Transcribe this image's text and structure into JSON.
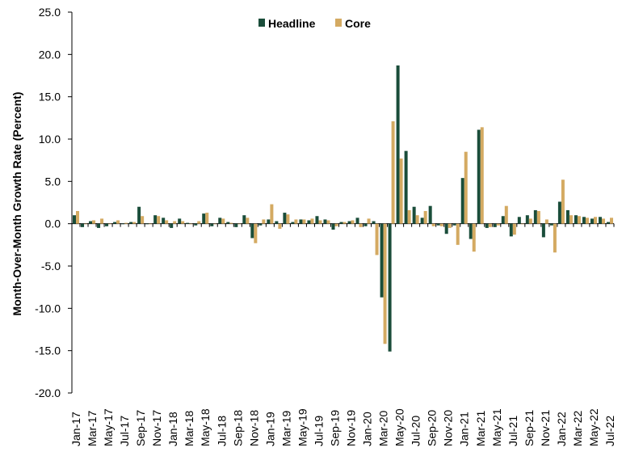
{
  "chart_data": {
    "type": "bar",
    "ylabel": "Month-Over-Month Growth Rate (Percent)",
    "ylim": [
      -20,
      25
    ],
    "yticks": [
      25,
      20,
      15,
      10,
      5,
      0,
      -5,
      -10,
      -15,
      -20
    ],
    "ytick_labels": [
      "25.0",
      "20.0",
      "15.0",
      "10.0",
      "5.0",
      "0.0",
      "-5.0",
      "-10.0",
      "-15.0",
      "-20.0"
    ],
    "legend_position": "top-center",
    "colors": {
      "Headline": "#1a4d3a",
      "Core": "#d4aa62"
    },
    "categories": [
      "Jan-17",
      "Feb-17",
      "Mar-17",
      "Apr-17",
      "May-17",
      "Jun-17",
      "Jul-17",
      "Aug-17",
      "Sep-17",
      "Oct-17",
      "Nov-17",
      "Dec-17",
      "Jan-18",
      "Feb-18",
      "Mar-18",
      "Apr-18",
      "May-18",
      "Jun-18",
      "Jul-18",
      "Aug-18",
      "Sep-18",
      "Oct-18",
      "Nov-18",
      "Dec-18",
      "Jan-19",
      "Feb-19",
      "Mar-19",
      "Apr-19",
      "May-19",
      "Jun-19",
      "Jul-19",
      "Aug-19",
      "Sep-19",
      "Oct-19",
      "Nov-19",
      "Dec-19",
      "Jan-20",
      "Feb-20",
      "Mar-20",
      "Apr-20",
      "May-20",
      "Jun-20",
      "Jul-20",
      "Aug-20",
      "Sep-20",
      "Oct-20",
      "Nov-20",
      "Dec-20",
      "Jan-21",
      "Feb-21",
      "Mar-21",
      "Apr-21",
      "May-21",
      "Jun-21",
      "Jul-21",
      "Aug-21",
      "Sep-21",
      "Oct-21",
      "Nov-21",
      "Dec-21",
      "Jan-22",
      "Feb-22",
      "Mar-22",
      "Apr-22",
      "May-22",
      "Jun-22",
      "Jul-22"
    ],
    "x_tick_labels": [
      "Jan-17",
      "Mar-17",
      "May-17",
      "Jul-17",
      "Sep-17",
      "Nov-17",
      "Jan-18",
      "Mar-18",
      "May-18",
      "Jul-18",
      "Sep-18",
      "Nov-18",
      "Jan-19",
      "Mar-19",
      "May-19",
      "Jul-19",
      "Sep-19",
      "Nov-19",
      "Jan-20",
      "Mar-20",
      "May-20",
      "Jul-20",
      "Sep-20",
      "Nov-20",
      "Jan-21",
      "Mar-21",
      "May-21",
      "Jul-21",
      "Sep-21",
      "Nov-21",
      "Jan-22",
      "Mar-22",
      "May-22",
      "Jul-22"
    ],
    "series": [
      {
        "name": "Headline",
        "values": [
          1.0,
          -0.4,
          0.3,
          -0.5,
          -0.3,
          0.2,
          0.0,
          0.2,
          2.0,
          0.0,
          1.0,
          0.7,
          -0.5,
          0.6,
          0.1,
          -0.2,
          1.2,
          -0.3,
          0.7,
          0.2,
          -0.4,
          1.0,
          -1.7,
          -0.2,
          0.5,
          0.3,
          1.3,
          0.2,
          0.5,
          0.4,
          0.9,
          0.5,
          -0.7,
          0.2,
          0.3,
          0.7,
          -0.3,
          0.3,
          -8.7,
          -15.1,
          18.7,
          8.6,
          2.0,
          0.7,
          2.1,
          -0.2,
          -1.2,
          -0.2,
          5.4,
          -1.8,
          11.1,
          -0.5,
          -0.4,
          0.9,
          -1.5,
          0.8,
          1.0,
          1.6,
          -1.6,
          -0.2,
          2.6,
          1.6,
          1.0,
          0.8,
          0.6,
          0.8,
          0.2
        ]
      },
      {
        "name": "Core",
        "values": [
          1.5,
          0.0,
          0.4,
          0.6,
          0.0,
          0.4,
          0.1,
          0.2,
          0.9,
          0.0,
          0.9,
          0.4,
          0.3,
          0.3,
          0.0,
          0.3,
          1.3,
          0.0,
          0.6,
          0.1,
          0.0,
          0.7,
          -2.3,
          0.5,
          2.3,
          -0.6,
          1.1,
          0.5,
          0.5,
          0.6,
          0.4,
          0.4,
          -0.3,
          0.2,
          0.4,
          -0.4,
          0.6,
          -3.7,
          -14.2,
          12.1,
          7.7,
          1.6,
          1.0,
          1.5,
          -0.3,
          -0.3,
          -0.5,
          -2.5,
          8.5,
          -3.3,
          11.4,
          -0.4,
          -0.2,
          2.1,
          -1.3,
          0.0,
          0.6,
          1.5,
          0.5,
          -3.4,
          5.2,
          1.0,
          0.9,
          0.7,
          0.8,
          0.6,
          0.7
        ]
      }
    ]
  }
}
